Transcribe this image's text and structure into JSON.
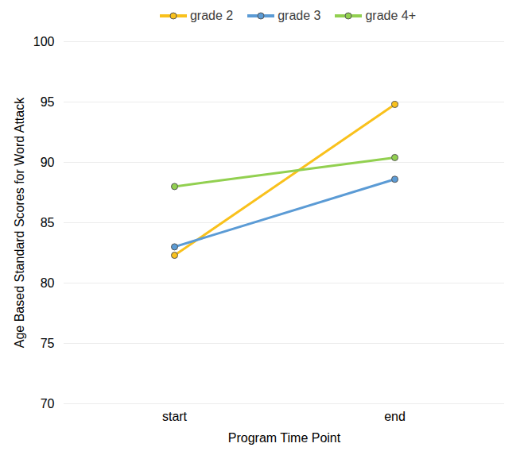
{
  "chart_data": {
    "type": "line",
    "x_label": "Program Time Point",
    "y_label": "Age Based Standard Scores for Word Attack",
    "categories": [
      "start",
      "end"
    ],
    "series": [
      {
        "name": "grade 2",
        "color": "#f9c11c",
        "values": [
          82.3,
          94.8
        ]
      },
      {
        "name": "grade 3",
        "color": "#5b9bd5",
        "values": [
          83.0,
          88.6
        ]
      },
      {
        "name": "grade 4+",
        "color": "#92d050",
        "values": [
          88.0,
          90.4
        ]
      }
    ],
    "ylim": [
      70,
      100
    ],
    "yticks": [
      70,
      75,
      80,
      85,
      90,
      95,
      100
    ],
    "grid": true,
    "legend": "top",
    "marker": "circle"
  }
}
